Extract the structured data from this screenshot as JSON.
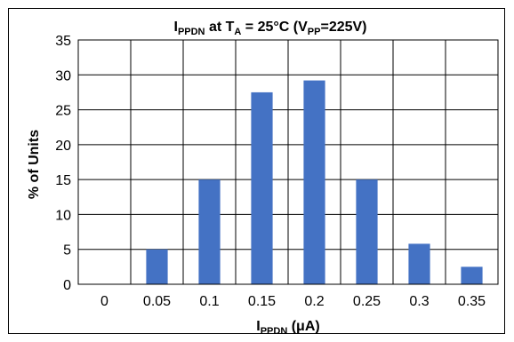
{
  "chart_data": {
    "type": "bar",
    "title": {
      "main": "I",
      "main_sub": "PPDN",
      "mid": " at T",
      "mid_sub": "A",
      "end1": " = 25°C (V",
      "end_sub": "PP",
      "end2": "=225V)"
    },
    "xlabel": {
      "main": "I",
      "sub": "PPDN",
      "unit": " (μA)"
    },
    "ylabel": "% of Units",
    "categories": [
      "0",
      "0.05",
      "0.1",
      "0.15",
      "0.2",
      "0.25",
      "0.3",
      "0.35"
    ],
    "values": [
      0,
      5,
      15,
      27.5,
      29.2,
      15,
      5.8,
      2.5
    ],
    "ylim": [
      0,
      35
    ],
    "yticks": [
      0,
      5,
      10,
      15,
      20,
      25,
      30,
      35
    ],
    "grid": true,
    "bar_color": "#4472C4"
  }
}
